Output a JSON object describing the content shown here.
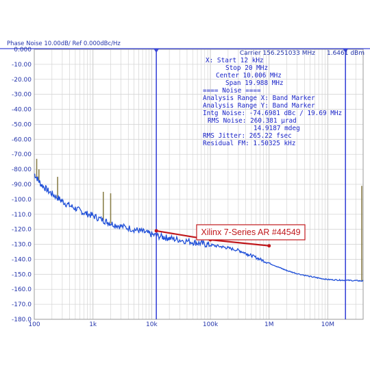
{
  "window": {
    "title": "Phase Noise 10.00dB/ Ref 0.000dBc/Hz",
    "carrier": "Carrier 156.251033 MHz",
    "carrier_power": "1.6461 dBm"
  },
  "colors": {
    "trace": "#1f4fd8",
    "marker_line": "#3a46d8",
    "annotation": "#c0181c",
    "grid": "#d4d4d4",
    "spur": "#8a7f4a"
  },
  "info_panel": [
    "X: Start 12 kHz",
    "Stop 20 MHz",
    "Center 10.006 MHz",
    "Span 19.988 MHz",
    "==== Noise ====",
    "Analysis Range X: Band Marker",
    "Analysis Range Y: Band Marker",
    "Intg Noise: -74.6981 dBc / 19.69 MHz",
    "RMS Noise: 260.381 µrad",
    "14.9187 mdeg",
    "RMS Jitter: 265.22 fsec",
    "Residual FM: 1.50325 kHz"
  ],
  "chart_data": {
    "type": "line",
    "x_scale": "log",
    "xlim": [
      100,
      40000000
    ],
    "ylim": [
      -180,
      0
    ],
    "grid": true,
    "x_ticks": [
      {
        "value": 100,
        "label": "100"
      },
      {
        "value": 1000,
        "label": "1k"
      },
      {
        "value": 10000,
        "label": "10k"
      },
      {
        "value": 100000,
        "label": "100k"
      },
      {
        "value": 1000000,
        "label": "1M"
      },
      {
        "value": 10000000,
        "label": "10M"
      }
    ],
    "y_ticks": [
      {
        "value": 0,
        "label": "0.000"
      },
      {
        "value": -10,
        "label": "-10.00"
      },
      {
        "value": -20,
        "label": "-20.00"
      },
      {
        "value": -30,
        "label": "-30.00"
      },
      {
        "value": -40,
        "label": "-40.00"
      },
      {
        "value": -50,
        "label": "-50.00"
      },
      {
        "value": -60,
        "label": "-60.00"
      },
      {
        "value": -70,
        "label": "-70.00"
      },
      {
        "value": -80,
        "label": "-80.00"
      },
      {
        "value": -90,
        "label": "-90.00"
      },
      {
        "value": -100,
        "label": "-100.0"
      },
      {
        "value": -110,
        "label": "-110.0"
      },
      {
        "value": -120,
        "label": "-120.0"
      },
      {
        "value": -130,
        "label": "-130.0"
      },
      {
        "value": -140,
        "label": "-140.0"
      },
      {
        "value": -150,
        "label": "-150.0"
      },
      {
        "value": -160,
        "label": "-160.0"
      },
      {
        "value": -170,
        "label": "-170.0"
      },
      {
        "value": -180,
        "label": "-180.0"
      }
    ],
    "series": [
      {
        "x": [
          100,
          130,
          180,
          250,
          350,
          500,
          700,
          1000,
          1500,
          2000,
          3000,
          5000,
          7000,
          10000,
          15000,
          20000,
          30000,
          50000,
          70000,
          100000,
          150000,
          200000,
          300000,
          400000,
          500000,
          700000,
          1000000,
          1500000,
          2000000,
          3000000,
          5000000,
          7000000,
          10000000,
          15000000,
          20000000,
          30000000,
          40000000
        ],
        "y": [
          -83,
          -90,
          -95,
          -99,
          -103,
          -106,
          -109,
          -111,
          -114,
          -116,
          -118,
          -120,
          -121.5,
          -123.5,
          -125,
          -126,
          -127,
          -128.5,
          -129.5,
          -130.5,
          -131.5,
          -132.5,
          -134,
          -136,
          -137.5,
          -140,
          -142.5,
          -145.5,
          -147.5,
          -149.5,
          -151.5,
          -152.5,
          -153.5,
          -153.8,
          -154,
          -154.2,
          -154.5
        ]
      }
    ],
    "spurs": [
      {
        "x": 110,
        "y": -73
      },
      {
        "x": 120,
        "y": -80
      },
      {
        "x": 250,
        "y": -85
      },
      {
        "x": 1500,
        "y": -95
      },
      {
        "x": 2000,
        "y": -96
      },
      {
        "x": 40000000,
        "y": -91
      }
    ],
    "markers": [
      {
        "x": 12000,
        "label": ""
      },
      {
        "x": 20000000,
        "label": ""
      }
    ],
    "annotations": [
      {
        "text": "Xilinx 7-Series AR #44549",
        "line_x": [
          12000,
          100000,
          1000000
        ],
        "line_y": [
          -121,
          -127,
          -131
        ]
      }
    ]
  }
}
